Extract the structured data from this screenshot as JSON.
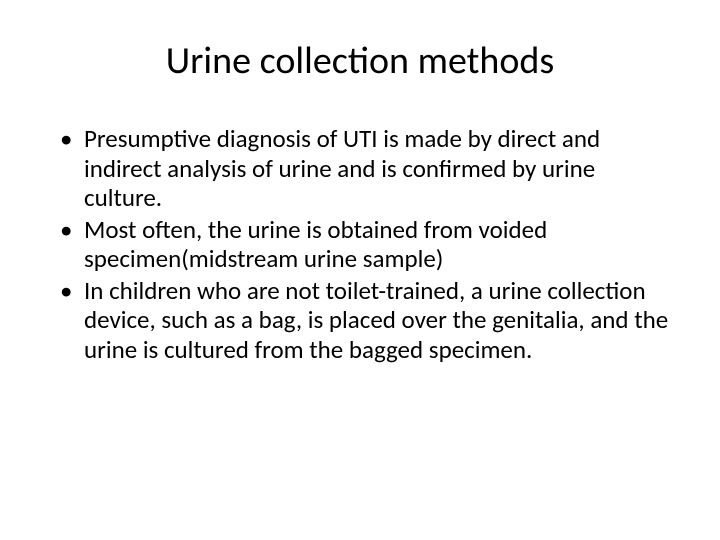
{
  "slide": {
    "title": "Urine collection methods",
    "bullets": [
      "Presumptive diagnosis of UTI is made by direct and indirect analysis of urine and is confirmed by urine culture.",
      "Most often, the urine is obtained from voided specimen(midstream urine sample)",
      "In children who are not toilet-trained, a urine collection device, such as a bag, is placed over the genitalia, and the urine is cultured from the bagged specimen."
    ]
  },
  "styling": {
    "background_color": "#ffffff",
    "text_color": "#000000",
    "title_fontsize": 38,
    "body_fontsize": 25,
    "font_family": "Calibri"
  }
}
